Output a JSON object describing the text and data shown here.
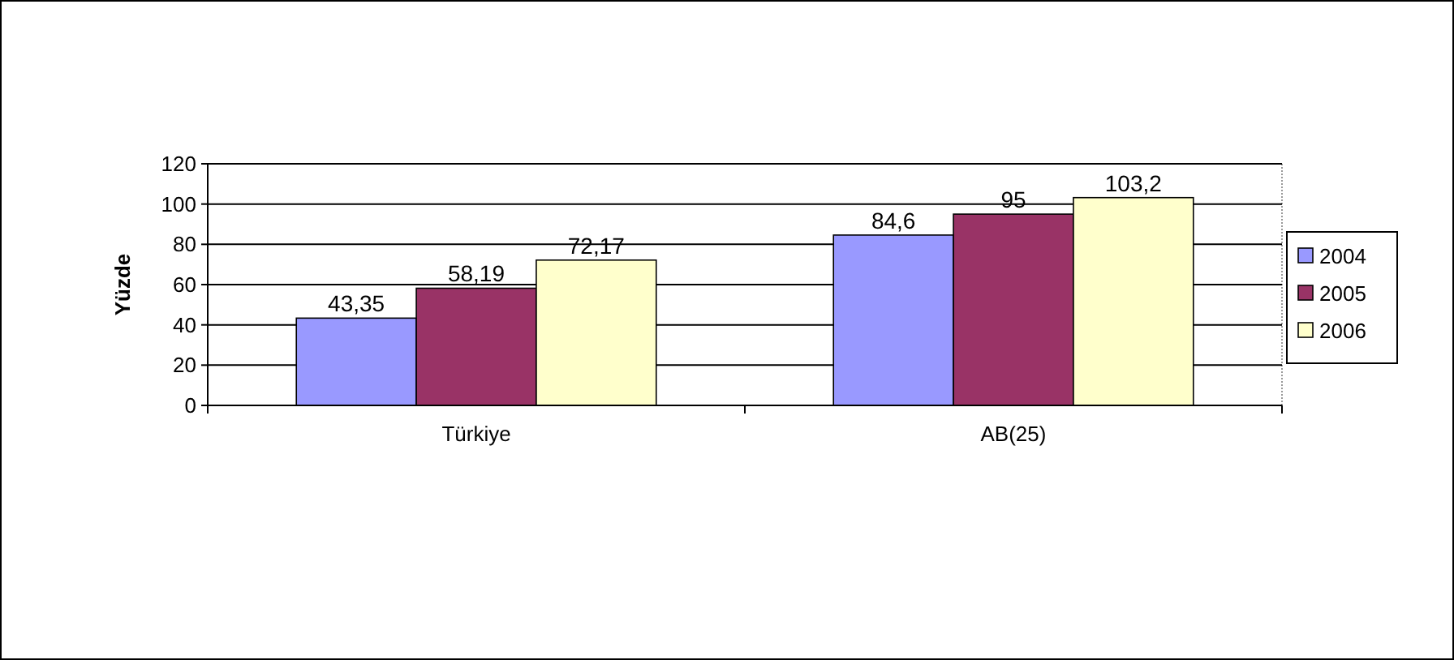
{
  "chart_data": {
    "type": "bar",
    "ylabel": "Yüzde",
    "categories": [
      "Türkiye",
      "AB(25)"
    ],
    "series": [
      {
        "name": "2004",
        "color": "#9999ff",
        "values": [
          43.35,
          84.6
        ],
        "value_labels": [
          "43,35",
          "84,6"
        ]
      },
      {
        "name": "2005",
        "color": "#993366",
        "values": [
          58.19,
          95
        ],
        "value_labels": [
          "58,19",
          "95"
        ]
      },
      {
        "name": "2006",
        "color": "#ffffcc",
        "values": [
          72.17,
          103.2
        ],
        "value_labels": [
          "72,17",
          "103,2"
        ]
      }
    ],
    "ylim": [
      0,
      120
    ],
    "yticks": [
      0,
      20,
      40,
      60,
      80,
      100,
      120
    ],
    "grid": "y",
    "legend": "right"
  }
}
